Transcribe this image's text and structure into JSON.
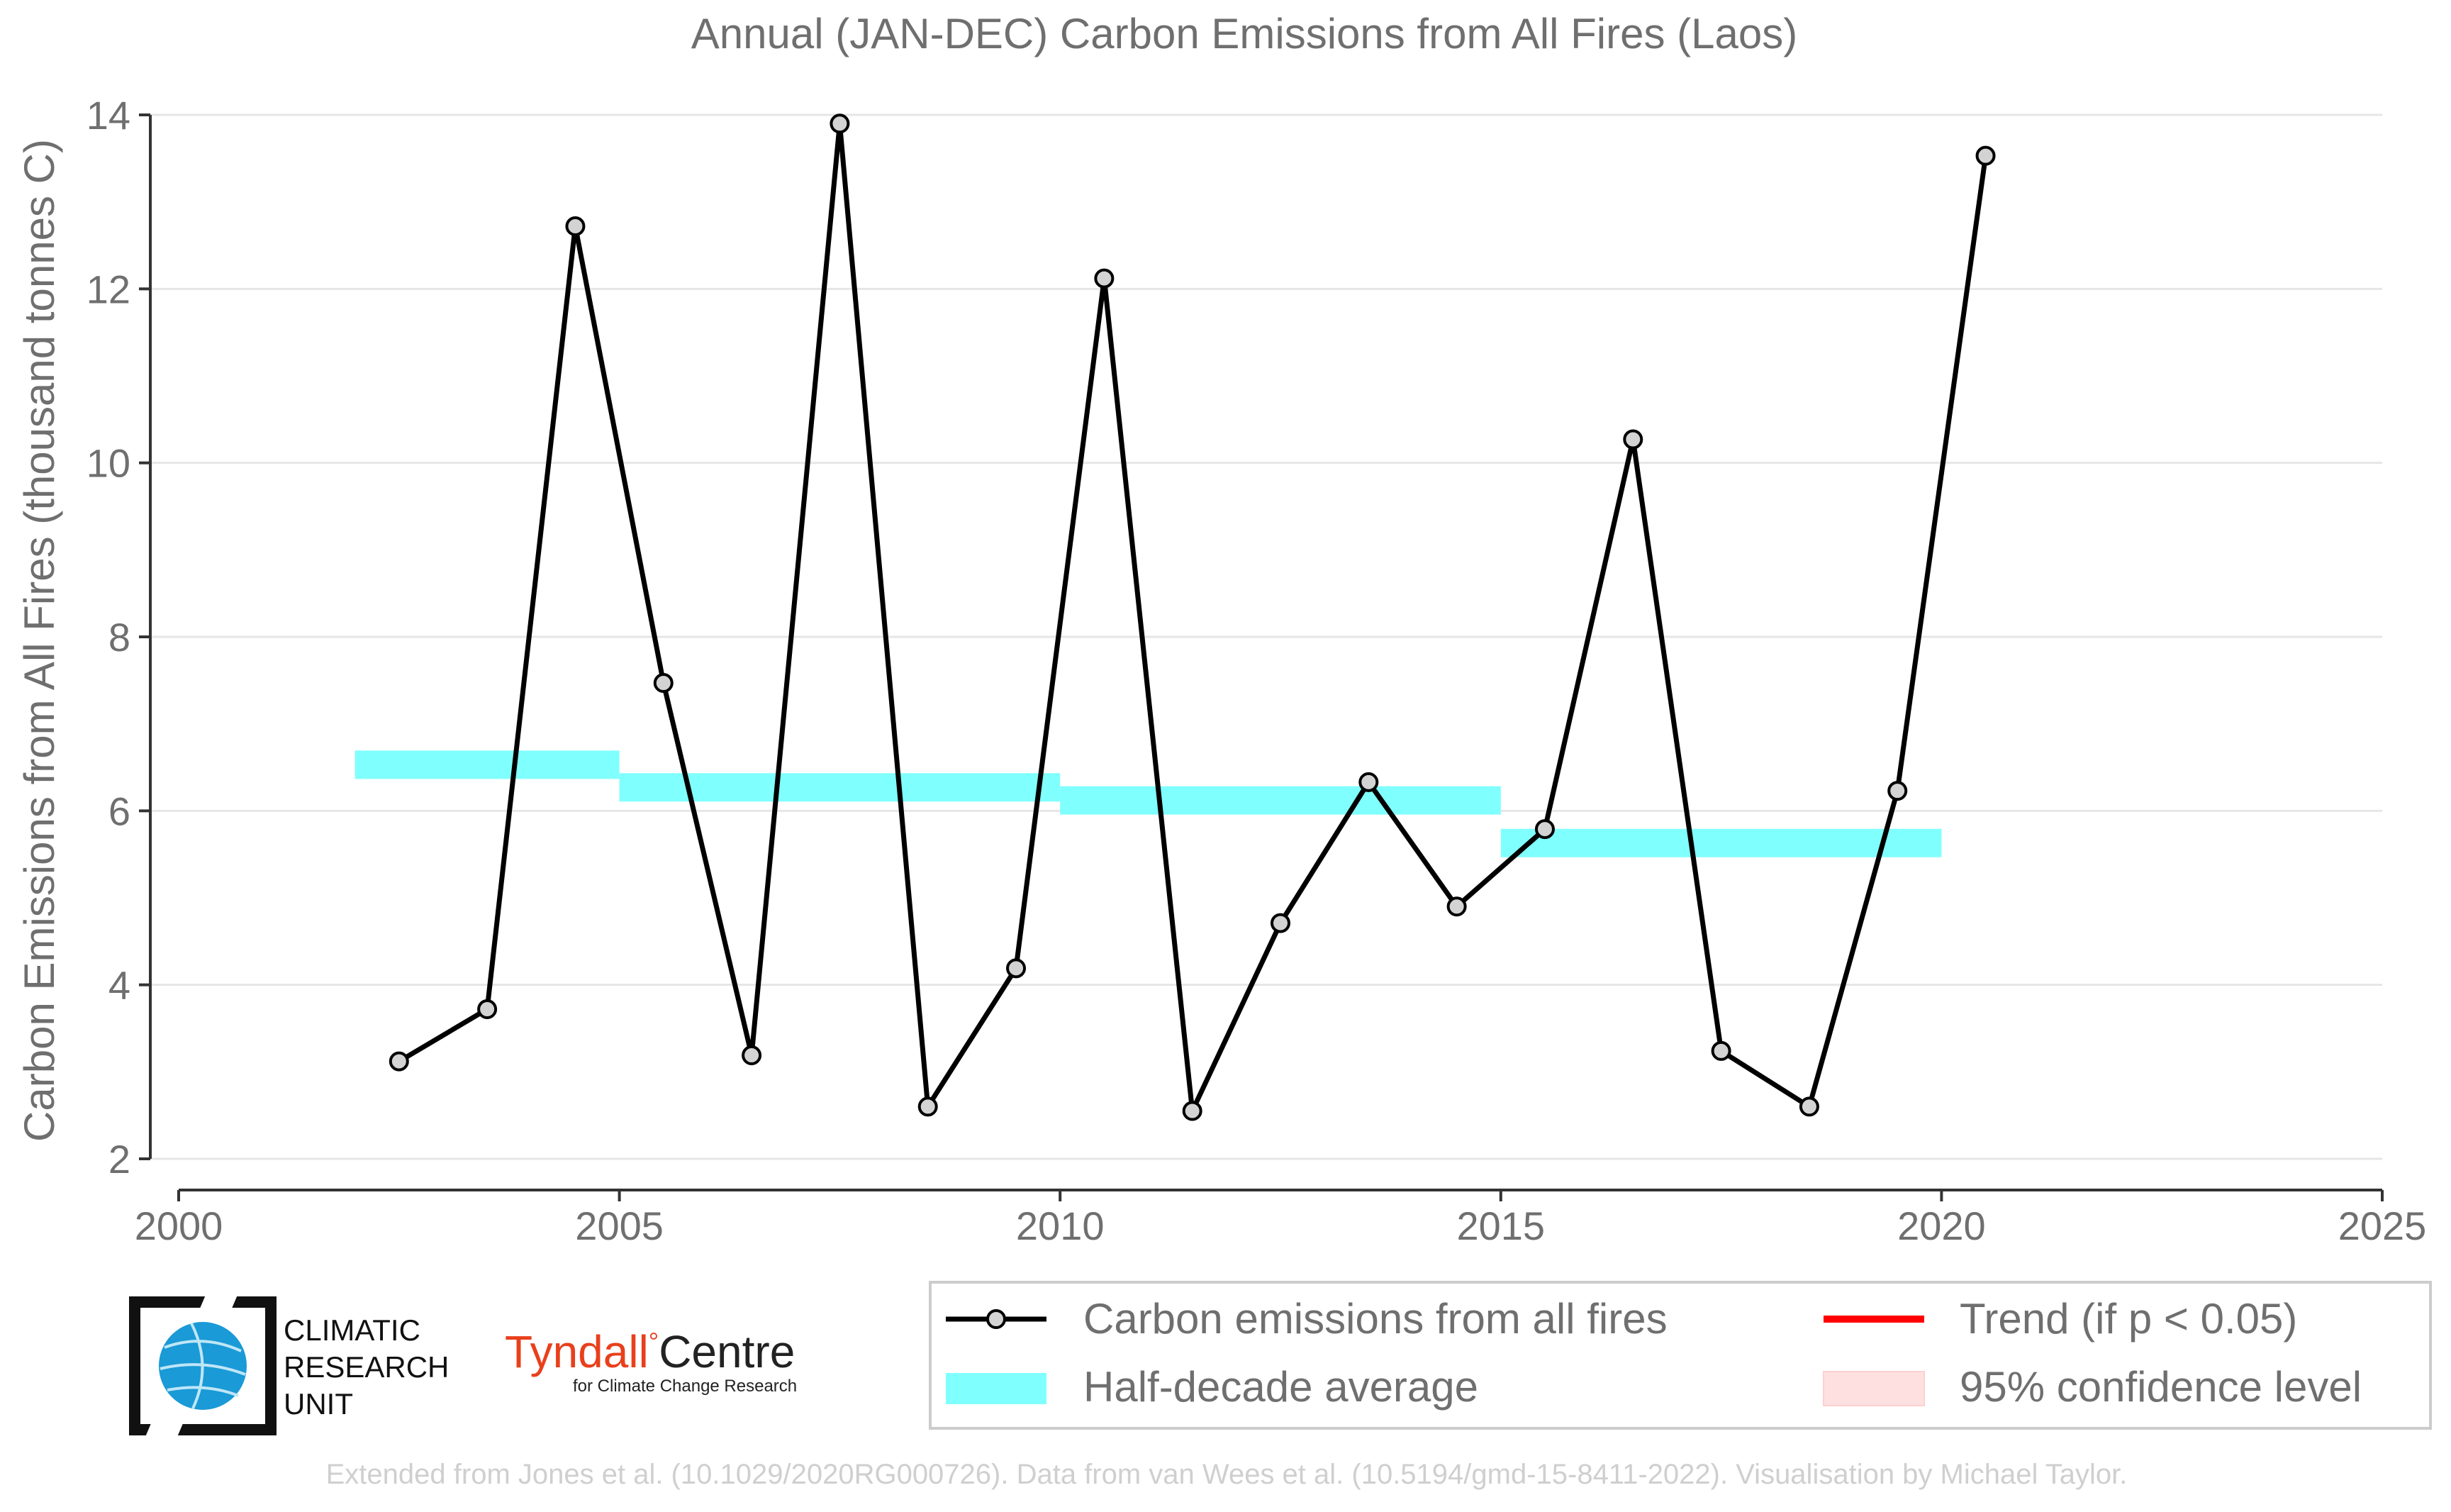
{
  "chart_data": {
    "type": "line",
    "title": "Annual (JAN-DEC) Carbon Emissions from All Fires (Laos)",
    "ylabel": "Carbon Emissions from All Fires (thousand tonnes C)",
    "xlabel": "",
    "xlim": [
      2000,
      2025
    ],
    "ylim": [
      2,
      14
    ],
    "x_ticks": [
      2000,
      2005,
      2010,
      2015,
      2020,
      2025
    ],
    "y_ticks": [
      2,
      4,
      6,
      8,
      10,
      12,
      14
    ],
    "grid": "horizontal",
    "legend_position": "bottom-right",
    "series": [
      {
        "name": "Carbon emissions from all fires",
        "kind": "line-markers",
        "color": "#000000",
        "marker_fill": "#d3d3d3",
        "x": [
          2002.5,
          2003.5,
          2004.5,
          2005.5,
          2006.5,
          2007.5,
          2008.5,
          2009.5,
          2010.5,
          2011.5,
          2012.5,
          2013.5,
          2014.5,
          2015.5,
          2016.5,
          2017.5,
          2018.5,
          2019.5,
          2020.5
        ],
        "values": [
          3.12,
          3.72,
          12.72,
          7.47,
          3.19,
          13.9,
          2.6,
          4.19,
          12.12,
          2.55,
          4.71,
          6.33,
          4.9,
          5.79,
          10.27,
          3.24,
          2.6,
          6.23,
          13.53
        ]
      },
      {
        "name": "Half-decade average",
        "kind": "step-band",
        "color": "#80ffff",
        "segments": [
          {
            "x0": 2002,
            "x1": 2005,
            "value": 6.53
          },
          {
            "x0": 2005,
            "x1": 2010,
            "value": 6.27
          },
          {
            "x0": 2010,
            "x1": 2015,
            "value": 6.12
          },
          {
            "x0": 2015,
            "x1": 2020,
            "value": 5.63
          }
        ]
      }
    ],
    "legend": [
      {
        "label": "Carbon emissions from all fires",
        "symbol": "line-marker",
        "color": "#000000"
      },
      {
        "label": "Trend (if p < 0.05)",
        "symbol": "line",
        "color": "#ff0000"
      },
      {
        "label": "Half-decade average",
        "symbol": "band",
        "color": "#80ffff"
      },
      {
        "label": "95% confidence level",
        "symbol": "band",
        "color": "#ffe0e0"
      }
    ]
  },
  "logos": {
    "cru": {
      "line1": "CLIMATIC",
      "line2": "RESEARCH",
      "line3": "UNIT"
    },
    "tyndall": {
      "name": "Tyndall",
      "degree": "°",
      "centre": "Centre",
      "sub": "for Climate Change Research"
    }
  },
  "footer": "Extended from Jones et al. (10.1029/2020RG000726). Data from van Wees et al. (10.5194/gmd-15-8411-2022). Visualisation by Michael Taylor.",
  "colors": {
    "text_grey": "#6f6f6f",
    "footer_grey": "#cfcfcf",
    "grid": "#e6e6e6",
    "cru_blue": "#1a9ad6",
    "tyndall_red": "#e8401c"
  }
}
